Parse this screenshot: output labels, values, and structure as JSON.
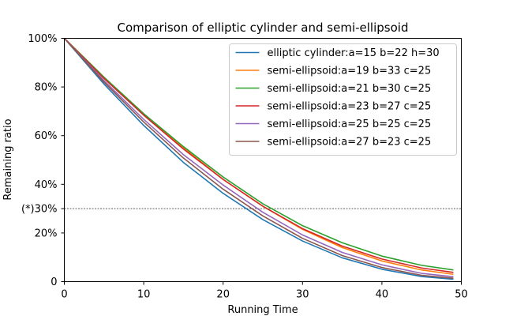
{
  "chart_data": {
    "type": "line",
    "title": "Comparison of elliptic cylinder and semi-ellipsoid",
    "xlabel": "Running Time",
    "ylabel": "Remaining ratio",
    "xlim": [
      0,
      50
    ],
    "ylim": [
      0,
      1
    ],
    "x_ticks": [
      0,
      10,
      20,
      30,
      40,
      50
    ],
    "x_tick_labels": [
      "0",
      "10",
      "20",
      "30",
      "40",
      "50"
    ],
    "y_ticks": [
      0,
      0.2,
      0.3,
      0.4,
      0.6,
      0.8,
      1.0
    ],
    "y_tick_labels": [
      "0",
      "20%",
      "(*)30%",
      "40%",
      "60%",
      "80%",
      "100%"
    ],
    "reference_line": {
      "y": 0.3,
      "style": "dashed",
      "color": "#000000"
    },
    "legend_position": "upper right",
    "grid": false,
    "x": [
      0,
      5,
      10,
      15,
      20,
      25,
      30,
      35,
      40,
      45,
      49
    ],
    "series": [
      {
        "name": "elliptic cylinder:a=15 b=22 h=30",
        "color": "#1f77b4",
        "values": [
          1.0,
          0.812,
          0.642,
          0.49,
          0.363,
          0.255,
          0.167,
          0.098,
          0.051,
          0.021,
          0.01
        ]
      },
      {
        "name": "semi-ellipsoid:a=19 b=33 c=25",
        "color": "#ff7f0e",
        "values": [
          1.0,
          0.84,
          0.69,
          0.55,
          0.42,
          0.31,
          0.215,
          0.14,
          0.085,
          0.048,
          0.03
        ]
      },
      {
        "name": "semi-ellipsoid:a=21 b=30 c=25",
        "color": "#2ca02c",
        "values": [
          1.0,
          0.84,
          0.69,
          0.555,
          0.43,
          0.32,
          0.23,
          0.16,
          0.105,
          0.067,
          0.048
        ]
      },
      {
        "name": "semi-ellipsoid:a=23 b=27 c=25",
        "color": "#d62728",
        "values": [
          1.0,
          0.835,
          0.684,
          0.545,
          0.42,
          0.31,
          0.218,
          0.146,
          0.093,
          0.056,
          0.038
        ]
      },
      {
        "name": "semi-ellipsoid:a=25 b=25 c=25",
        "color": "#9467bd",
        "values": [
          1.0,
          0.826,
          0.667,
          0.522,
          0.397,
          0.285,
          0.192,
          0.12,
          0.069,
          0.034,
          0.02
        ]
      },
      {
        "name": "semi-ellipsoid:a=27 b=23 c=25",
        "color": "#8c564b",
        "values": [
          1.0,
          0.82,
          0.656,
          0.508,
          0.38,
          0.27,
          0.178,
          0.107,
          0.058,
          0.026,
          0.014
        ]
      }
    ]
  }
}
